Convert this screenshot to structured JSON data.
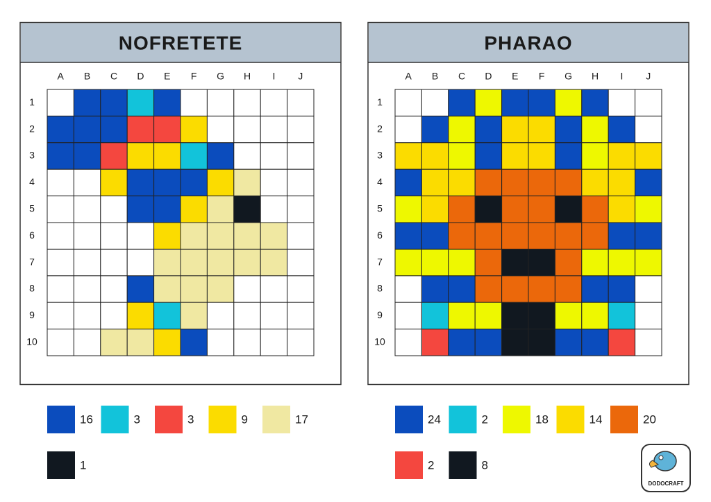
{
  "palette": {
    "W": "#ffffff",
    "B": "#0b4cbd",
    "C": "#12c3da",
    "R": "#f4473f",
    "Y": "#fbdc00",
    "L": "#f0e8a2",
    "K": "#111820",
    "G": "#eef800",
    "O": "#eb680b"
  },
  "panels": [
    {
      "title": "NOFRETETE",
      "columns": [
        "A",
        "B",
        "C",
        "D",
        "E",
        "F",
        "G",
        "H",
        "I",
        "J"
      ],
      "rows": [
        "1",
        "2",
        "3",
        "4",
        "5",
        "6",
        "7",
        "8",
        "9",
        "10"
      ],
      "grid": [
        "WBBCBWWWWW",
        "BBBRRYWWWW",
        "BBRYYCBWWW",
        "WWYBBBYLWW",
        "WWWBBYLKWW",
        "WWWWYLLLLW",
        "WWWWLLLLLW",
        "WWWBLLLWWW",
        "WWWYCLWWWW",
        "WWLLYBWWWW"
      ],
      "legend": [
        {
          "color": "B",
          "count": 16
        },
        {
          "color": "C",
          "count": 3
        },
        {
          "color": "R",
          "count": 3
        },
        {
          "color": "Y",
          "count": 9
        },
        {
          "color": "L",
          "count": 17
        },
        {
          "color": "K",
          "count": 1
        }
      ]
    },
    {
      "title": "PHARAO",
      "columns": [
        "A",
        "B",
        "C",
        "D",
        "E",
        "F",
        "G",
        "H",
        "I",
        "J"
      ],
      "rows": [
        "1",
        "2",
        "3",
        "4",
        "5",
        "6",
        "7",
        "8",
        "9",
        "10"
      ],
      "grid": [
        "WWBGBBGBWW",
        "WBGBYYBGBW",
        "YYGBYYBGYY",
        "BYYOOOOYYB",
        "GYOKOOKOYG",
        "BBOOOOOOBB",
        "GGGOKKOGGG",
        "WBBOOOOBBW",
        "WCGGKKGGCW",
        "WRBBKKBBRW"
      ],
      "legend": [
        {
          "color": "B",
          "count": 24
        },
        {
          "color": "C",
          "count": 2
        },
        {
          "color": "G",
          "count": 18
        },
        {
          "color": "Y",
          "count": 14
        },
        {
          "color": "O",
          "count": 20
        },
        {
          "color": "R",
          "count": 2
        },
        {
          "color": "K",
          "count": 8
        }
      ]
    }
  ],
  "logo": "DODOCRAFT"
}
